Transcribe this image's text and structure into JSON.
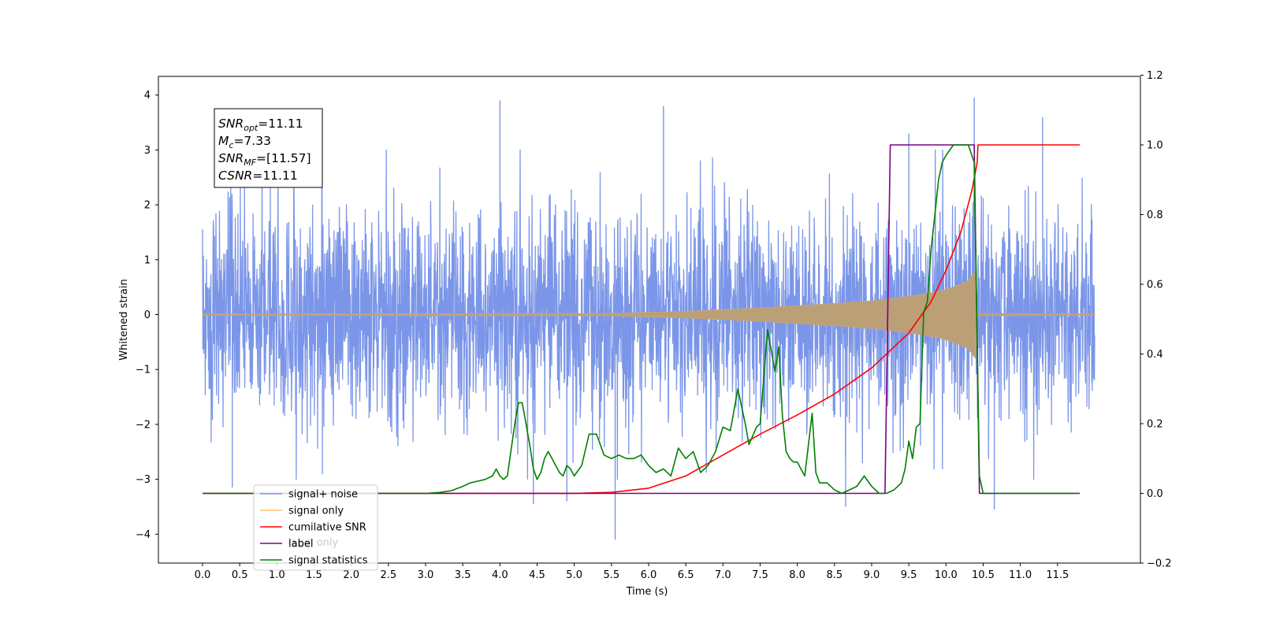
{
  "chart_data": {
    "type": "line",
    "xlabel": "Time (s)",
    "ylabel": "Whitened strain",
    "x_ticks": [
      "0.0",
      "0.5",
      "1.0",
      "1.5",
      "2.0",
      "2.5",
      "3.0",
      "3.5",
      "4.0",
      "4.5",
      "5.0",
      "5.5",
      "6.0",
      "6.5",
      "7.0",
      "7.5",
      "8.0",
      "8.5",
      "9.0",
      "9.5",
      "10.0",
      "10.5",
      "11.0",
      "11.5"
    ],
    "y_left_ticks": [
      "4",
      "3",
      "2",
      "1",
      "0",
      "−1",
      "−2",
      "−3",
      "−4"
    ],
    "y_right_ticks": [
      "1.2",
      "1.0",
      "0.8",
      "0.6",
      "0.4",
      "0.2",
      "0.0",
      "−0.2"
    ],
    "xlim": [
      -0.6,
      12.6
    ],
    "ylim_left": [
      -4.5,
      4.35
    ],
    "ylim_right": [
      -0.2,
      1.2
    ],
    "grid": false,
    "legend_placement": "lower-left",
    "annotation": [
      {
        "main": "SNR",
        "sub": "opt",
        "value": "=11.11"
      },
      {
        "main": "M",
        "sub": "c",
        "value": "=7.33"
      },
      {
        "main": "SNR",
        "sub": "MF",
        "value": "=[11.57]"
      },
      {
        "main": "CSNR",
        "sub": "",
        "value": "=11.11"
      }
    ],
    "legend": [
      {
        "label": "signal+ noise",
        "color": "#7b96e8"
      },
      {
        "label": "signal only",
        "color": "#ffc266"
      },
      {
        "label": "cumilative SNR",
        "color": "#ff0000"
      },
      {
        "label": "label",
        "color": "#7d0083"
      },
      {
        "label": "signal statistics",
        "color": "#008000"
      }
    ],
    "behind_legend_text": "label only",
    "noise": {
      "x_range": [
        0.0,
        12.0
      ],
      "amplitude_range": [
        -4.1,
        3.95
      ],
      "peaks": [
        {
          "x": 4.0,
          "y": 3.9
        },
        {
          "x": 6.2,
          "y": 3.8
        },
        {
          "x": 10.38,
          "y": 3.95
        },
        {
          "x": 11.3,
          "y": 3.6
        },
        {
          "x": 5.55,
          "y": -4.1
        },
        {
          "x": 4.45,
          "y": -3.45
        },
        {
          "x": 4.9,
          "y": -3.4
        },
        {
          "x": 8.65,
          "y": -3.5
        },
        {
          "x": 10.65,
          "y": -3.55
        },
        {
          "x": 0.4,
          "y": -3.15
        },
        {
          "x": 9.5,
          "y": 3.3
        }
      ]
    },
    "signal_only": {
      "x": [
        0.0,
        5.5,
        6.5,
        7.5,
        8.5,
        9.0,
        9.5,
        9.9,
        10.1,
        10.3,
        10.4,
        10.42,
        12.0
      ],
      "envelope": [
        0.01,
        0.02,
        0.06,
        0.12,
        0.2,
        0.25,
        0.33,
        0.42,
        0.5,
        0.62,
        0.8,
        0.02,
        0.01
      ]
    },
    "series": [
      {
        "name": "cumilative SNR",
        "x": [
          0.0,
          5.0,
          5.5,
          6.0,
          6.5,
          7.0,
          7.5,
          8.0,
          8.5,
          9.0,
          9.5,
          9.8,
          10.0,
          10.2,
          10.35,
          10.42,
          10.43,
          11.8
        ],
        "y": [
          0.0,
          0.0,
          0.003,
          0.015,
          0.05,
          0.11,
          0.17,
          0.225,
          0.285,
          0.36,
          0.46,
          0.55,
          0.64,
          0.75,
          0.87,
          0.95,
          1.0,
          1.0
        ]
      },
      {
        "name": "label",
        "x": [
          0.0,
          9.18,
          9.25,
          10.38,
          10.45,
          11.8
        ],
        "y": [
          0.0,
          0.0,
          1.0,
          1.0,
          0.0,
          0.0
        ]
      },
      {
        "name": "signal statistics",
        "x": [
          0.0,
          3.0,
          3.2,
          3.35,
          3.5,
          3.6,
          3.7,
          3.8,
          3.9,
          3.95,
          4.0,
          4.05,
          4.1,
          4.2,
          4.25,
          4.3,
          4.4,
          4.45,
          4.5,
          4.55,
          4.6,
          4.65,
          4.7,
          4.8,
          4.85,
          4.9,
          4.95,
          5.0,
          5.1,
          5.2,
          5.3,
          5.4,
          5.5,
          5.6,
          5.7,
          5.8,
          5.9,
          6.0,
          6.1,
          6.2,
          6.3,
          6.4,
          6.5,
          6.6,
          6.7,
          6.8,
          6.9,
          7.0,
          7.1,
          7.2,
          7.3,
          7.35,
          7.45,
          7.5,
          7.6,
          7.7,
          7.75,
          7.8,
          7.85,
          7.9,
          7.95,
          8.0,
          8.1,
          8.2,
          8.25,
          8.3,
          8.4,
          8.5,
          8.6,
          8.7,
          8.8,
          8.9,
          9.0,
          9.1,
          9.2,
          9.3,
          9.4,
          9.45,
          9.5,
          9.55,
          9.6,
          9.65,
          9.7,
          9.75,
          9.8,
          9.85,
          9.9,
          9.95,
          10.0,
          10.1,
          10.2,
          10.3,
          10.38,
          10.45,
          10.5,
          10.6,
          11.8
        ],
        "y": [
          0.0,
          0.0,
          0.003,
          0.008,
          0.02,
          0.03,
          0.035,
          0.04,
          0.05,
          0.07,
          0.05,
          0.04,
          0.05,
          0.2,
          0.26,
          0.26,
          0.14,
          0.07,
          0.04,
          0.06,
          0.1,
          0.12,
          0.1,
          0.06,
          0.05,
          0.08,
          0.07,
          0.05,
          0.08,
          0.17,
          0.17,
          0.11,
          0.1,
          0.11,
          0.1,
          0.1,
          0.11,
          0.08,
          0.06,
          0.07,
          0.05,
          0.13,
          0.1,
          0.12,
          0.06,
          0.08,
          0.12,
          0.19,
          0.18,
          0.3,
          0.2,
          0.14,
          0.19,
          0.2,
          0.47,
          0.35,
          0.42,
          0.22,
          0.12,
          0.1,
          0.09,
          0.09,
          0.05,
          0.23,
          0.06,
          0.03,
          0.03,
          0.01,
          0.0,
          0.01,
          0.02,
          0.05,
          0.02,
          0.0,
          0.0,
          0.01,
          0.03,
          0.07,
          0.15,
          0.1,
          0.19,
          0.2,
          0.52,
          0.55,
          0.7,
          0.8,
          0.9,
          0.95,
          0.97,
          1.0,
          1.0,
          1.0,
          0.95,
          0.05,
          0.0,
          0.0,
          0.0
        ]
      }
    ]
  }
}
